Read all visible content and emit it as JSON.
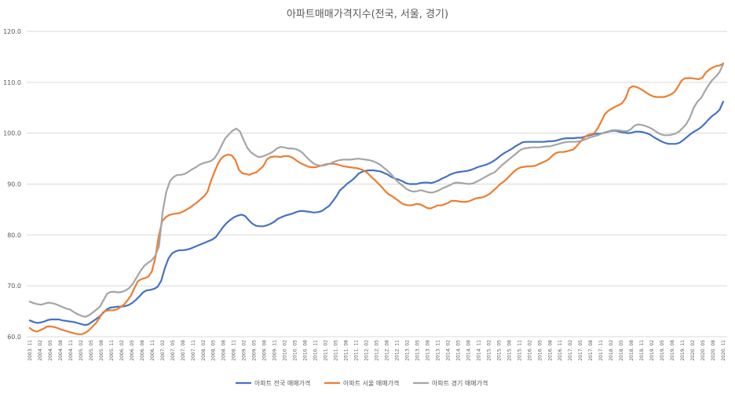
{
  "chart_data": {
    "type": "line",
    "title": "아파트매매가격지수(전국, 서울, 경기)",
    "xlabel": "",
    "ylabel": "",
    "ylim": [
      60,
      120
    ],
    "yticks": [
      "60.0",
      "70.0",
      "80.0",
      "90.0",
      "100.0",
      "110.0",
      "120.0"
    ],
    "grid": true,
    "legend_position": "bottom",
    "x_tick_labels": [
      "2003. 11",
      "2004. 02",
      "2004. 05",
      "2004. 08",
      "2004. 11",
      "2005. 02",
      "2005. 05",
      "2005. 08",
      "2005. 11",
      "2006. 02",
      "2006. 05",
      "2006. 08",
      "2006. 11",
      "2007. 02",
      "2007. 05",
      "2007. 08",
      "2007. 11",
      "2008. 02",
      "2008. 05",
      "2008. 08",
      "2008. 11",
      "2009. 02",
      "2009. 05",
      "2009. 08",
      "2009. 11",
      "2010. 02",
      "2010. 05",
      "2010. 08",
      "2010. 11",
      "2011. 02",
      "2011. 05",
      "2011. 08",
      "2011. 11",
      "2012. 02",
      "2012. 05",
      "2012. 08",
      "2012. 11",
      "2013. 02",
      "2013. 05",
      "2013. 08",
      "2013. 11",
      "2014. 02",
      "2014. 05",
      "2014. 08",
      "2014. 11",
      "2015. 02",
      "2015. 05",
      "2015. 08",
      "2015. 11",
      "2016. 02",
      "2016. 05",
      "2016. 08",
      "2016. 11",
      "2017. 02",
      "2017. 05",
      "2017. 08",
      "2017. 11",
      "2018. 02",
      "2018. 05",
      "2018. 08",
      "2018. 11",
      "2019. 02",
      "2019. 05",
      "2019. 08",
      "2019. 11",
      "2020. 02",
      "2020. 05",
      "2020. 08",
      "2020. 11"
    ],
    "series": [
      {
        "name": "아파트 전국 매매가격",
        "color": "#4472c4",
        "values": [
          63.2,
          62.9,
          62.7,
          62.8,
          63.0,
          63.3,
          63.4,
          63.4,
          63.4,
          63.2,
          63.1,
          63.0,
          62.9,
          62.7,
          62.5,
          62.3,
          62.4,
          62.9,
          63.4,
          63.9,
          64.6,
          65.3,
          65.7,
          65.8,
          65.9,
          65.9,
          66.0,
          66.2,
          66.6,
          67.2,
          67.9,
          68.7,
          69.1,
          69.2,
          69.4,
          69.8,
          71.0,
          73.5,
          75.4,
          76.4,
          76.8,
          77.0,
          77.0,
          77.1,
          77.3,
          77.6,
          77.9,
          78.2,
          78.5,
          78.8,
          79.1,
          79.6,
          80.6,
          81.6,
          82.4,
          83.0,
          83.5,
          83.8,
          84.0,
          83.7,
          82.9,
          82.2,
          81.8,
          81.7,
          81.7,
          81.9,
          82.2,
          82.6,
          83.2,
          83.5,
          83.8,
          84.0,
          84.2,
          84.5,
          84.7,
          84.7,
          84.6,
          84.5,
          84.4,
          84.5,
          84.7,
          85.2,
          85.7,
          86.6,
          87.6,
          88.8,
          89.4,
          90.1,
          90.6,
          91.2,
          92.0,
          92.4,
          92.6,
          92.7,
          92.7,
          92.6,
          92.5,
          92.2,
          91.9,
          91.4,
          91.1,
          90.9,
          90.6,
          90.2,
          90.0,
          90.0,
          90.0,
          90.2,
          90.3,
          90.3,
          90.2,
          90.4,
          90.7,
          91.1,
          91.4,
          91.8,
          92.1,
          92.3,
          92.4,
          92.5,
          92.6,
          92.8,
          93.1,
          93.4,
          93.6,
          93.8,
          94.1,
          94.5,
          95.0,
          95.6,
          96.1,
          96.5,
          96.9,
          97.4,
          97.8,
          98.2,
          98.3,
          98.3,
          98.3,
          98.3,
          98.3,
          98.3,
          98.4,
          98.4,
          98.5,
          98.7,
          98.9,
          99.0,
          99.0,
          99.0,
          99.1,
          99.1,
          99.3,
          99.5,
          99.7,
          99.9,
          99.9,
          100.0,
          100.2,
          100.4,
          100.5,
          100.4,
          100.2,
          100.1,
          100.0,
          100.1,
          100.3,
          100.3,
          100.2,
          100.0,
          99.7,
          99.2,
          98.8,
          98.4,
          98.1,
          97.9,
          97.9,
          97.9,
          98.1,
          98.6,
          99.2,
          99.8,
          100.3,
          100.7,
          101.2,
          101.9,
          102.7,
          103.4,
          103.9,
          104.6,
          106.2
        ]
      },
      {
        "name": "아파트 서울 매매가격",
        "color": "#ed7d31",
        "values": [
          61.7,
          61.2,
          61.0,
          61.3,
          61.6,
          62.0,
          62.0,
          61.9,
          61.7,
          61.4,
          61.2,
          61.0,
          60.8,
          60.6,
          60.5,
          60.5,
          60.8,
          61.3,
          62.0,
          62.7,
          63.7,
          64.8,
          65.1,
          65.2,
          65.2,
          65.4,
          65.8,
          66.3,
          67.1,
          68.1,
          69.5,
          70.9,
          71.3,
          71.5,
          71.8,
          72.8,
          75.4,
          79.8,
          82.7,
          83.5,
          83.9,
          84.1,
          84.2,
          84.3,
          84.6,
          85.0,
          85.4,
          85.9,
          86.4,
          87.0,
          87.6,
          88.5,
          90.6,
          92.4,
          94.0,
          95.1,
          95.6,
          95.8,
          95.6,
          94.7,
          92.8,
          92.1,
          92.0,
          91.8,
          92.1,
          92.3,
          92.9,
          93.5,
          94.8,
          95.3,
          95.4,
          95.4,
          95.3,
          95.5,
          95.5,
          95.3,
          94.9,
          94.4,
          94.0,
          93.7,
          93.4,
          93.3,
          93.3,
          93.5,
          93.7,
          93.9,
          94.0,
          94.0,
          93.9,
          93.7,
          93.5,
          93.4,
          93.3,
          93.2,
          93.1,
          92.9,
          92.6,
          92.1,
          91.4,
          90.8,
          90.1,
          89.4,
          88.6,
          88.0,
          87.6,
          87.1,
          86.6,
          86.1,
          85.9,
          85.8,
          85.9,
          86.1,
          86.0,
          85.7,
          85.3,
          85.2,
          85.5,
          85.8,
          85.8,
          86.0,
          86.3,
          86.7,
          86.7,
          86.6,
          86.5,
          86.5,
          86.6,
          86.9,
          87.2,
          87.3,
          87.4,
          87.7,
          88.1,
          88.7,
          89.3,
          90.0,
          90.5,
          91.1,
          91.8,
          92.5,
          93.0,
          93.3,
          93.4,
          93.5,
          93.5,
          93.6,
          93.9,
          94.2,
          94.5,
          94.9,
          95.6,
          96.1,
          96.3,
          96.3,
          96.4,
          96.6,
          96.8,
          97.5,
          98.3,
          99.1,
          99.6,
          99.8,
          100.0,
          101.0,
          102.3,
          103.7,
          104.4,
          104.8,
          105.2,
          105.5,
          105.9,
          106.9,
          108.8,
          109.2,
          109.1,
          108.8,
          108.4,
          107.9,
          107.5,
          107.2,
          107.1,
          107.1,
          107.1,
          107.3,
          107.6,
          108.1,
          109.1,
          110.3,
          110.8,
          110.8,
          110.8,
          110.7,
          110.6,
          110.9,
          111.9,
          112.5,
          112.9,
          113.2,
          113.3,
          113.7
        ]
      },
      {
        "name": "아파트 경기 매매가격",
        "color": "#a5a5a5",
        "values": [
          66.9,
          66.6,
          66.4,
          66.3,
          66.5,
          66.7,
          66.6,
          66.4,
          66.1,
          65.8,
          65.5,
          65.3,
          64.8,
          64.4,
          64.1,
          63.9,
          64.2,
          64.7,
          65.3,
          65.9,
          67.2,
          68.5,
          68.8,
          68.8,
          68.7,
          68.8,
          69.1,
          69.6,
          70.5,
          71.7,
          72.9,
          73.9,
          74.5,
          75.0,
          75.9,
          77.7,
          84.5,
          88.5,
          90.6,
          91.4,
          91.8,
          91.8,
          92.0,
          92.4,
          92.9,
          93.3,
          93.8,
          94.1,
          94.3,
          94.5,
          95.0,
          96.1,
          97.6,
          99.0,
          99.8,
          100.5,
          100.9,
          100.3,
          98.6,
          97.1,
          96.2,
          95.7,
          95.3,
          95.4,
          95.7,
          96.0,
          96.4,
          97.0,
          97.3,
          97.2,
          97.0,
          97.0,
          96.9,
          96.6,
          96.1,
          95.3,
          94.6,
          94.0,
          93.7,
          93.6,
          93.7,
          93.9,
          94.2,
          94.5,
          94.7,
          94.8,
          94.8,
          94.8,
          94.9,
          95.0,
          94.9,
          94.8,
          94.7,
          94.5,
          94.2,
          93.8,
          93.2,
          92.6,
          91.9,
          91.0,
          90.3,
          89.7,
          89.1,
          88.7,
          88.5,
          88.6,
          88.8,
          88.6,
          88.4,
          88.3,
          88.5,
          88.8,
          89.2,
          89.5,
          89.8,
          90.2,
          90.3,
          90.2,
          90.1,
          90.0,
          90.1,
          90.4,
          90.8,
          91.2,
          91.6,
          92.0,
          92.3,
          93.0,
          93.7,
          94.3,
          94.9,
          95.5,
          96.1,
          96.7,
          97.0,
          97.1,
          97.2,
          97.2,
          97.2,
          97.3,
          97.4,
          97.4,
          97.6,
          97.8,
          98.0,
          98.2,
          98.3,
          98.3,
          98.3,
          98.4,
          98.6,
          98.9,
          99.2,
          99.4,
          99.6,
          99.9,
          100.2,
          100.4,
          100.6,
          100.6,
          100.5,
          100.4,
          100.4,
          100.8,
          101.5,
          101.7,
          101.6,
          101.4,
          101.1,
          100.7,
          100.2,
          99.8,
          99.6,
          99.6,
          99.7,
          99.9,
          100.3,
          101.0,
          101.8,
          103.1,
          105.0,
          106.2,
          106.9,
          108.2,
          109.4,
          110.4,
          111.1,
          112.0,
          113.6
        ]
      }
    ]
  }
}
